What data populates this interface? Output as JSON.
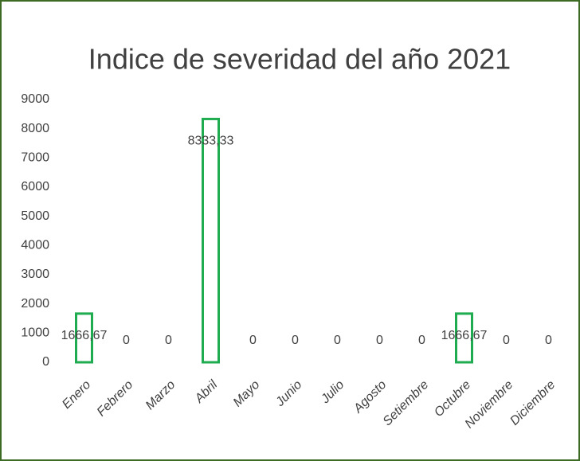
{
  "chart_data": {
    "type": "bar",
    "title": "Indice de severidad del año 2021",
    "categories": [
      "Enero",
      "Febrero",
      "Marzo",
      "Abril",
      "Mayo",
      "Junio",
      "Julio",
      "Agosto",
      "Setiembre",
      "Octubre",
      "Noviembre",
      "Diciembre"
    ],
    "values": [
      1666.67,
      0,
      0,
      8333.33,
      0,
      0,
      0,
      0,
      0,
      1666.67,
      0,
      0
    ],
    "value_labels": [
      "1666,67",
      "0",
      "0",
      "8333,33",
      "0",
      "0",
      "0",
      "0",
      "0",
      "1666,67",
      "0",
      "0"
    ],
    "color": "#1fab4f",
    "ylim": [
      0,
      9000
    ],
    "yticks": [
      0,
      1000,
      2000,
      3000,
      4000,
      5000,
      6000,
      7000,
      8000,
      9000
    ],
    "grid": false
  }
}
